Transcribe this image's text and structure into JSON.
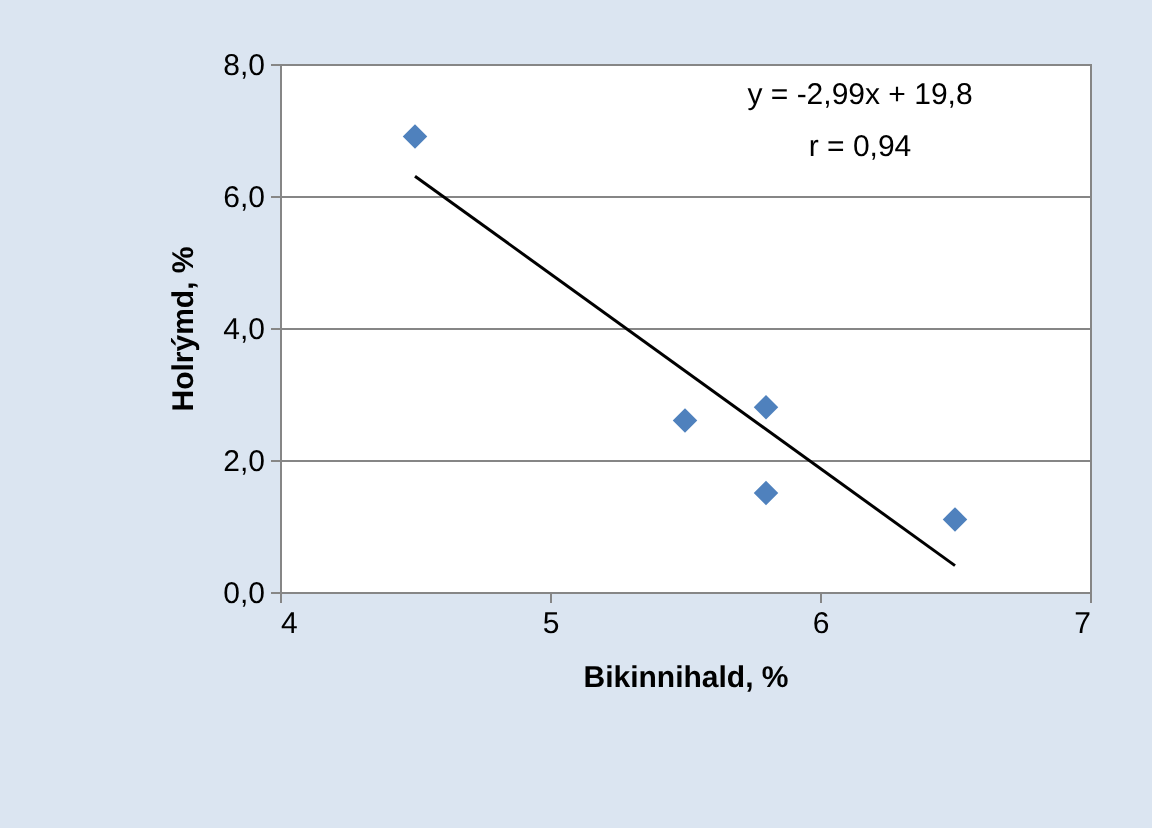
{
  "chart_data": {
    "type": "scatter",
    "xlabel": "Bikinnihald, %",
    "ylabel": "Holrýmd, %",
    "xlim": [
      4,
      7
    ],
    "xticks": [
      4,
      5,
      6,
      7
    ],
    "ylim": [
      0,
      8
    ],
    "yticks": [
      {
        "value": 0,
        "label": "0,0"
      },
      {
        "value": 2,
        "label": "2,0"
      },
      {
        "value": 4,
        "label": "4,0"
      },
      {
        "value": 6,
        "label": "6,0"
      },
      {
        "value": 8,
        "label": "8,0"
      }
    ],
    "grid": "y",
    "series": [
      {
        "marker": "diamond",
        "color": "#4f81bd",
        "x": [
          4.5,
          5.5,
          5.8,
          5.8,
          6.5
        ],
        "values": [
          6.9,
          2.6,
          2.8,
          1.5,
          1.1
        ]
      },
      {
        "type": "line",
        "marker": "none",
        "color": "#000000",
        "x": [
          4.5,
          6.5
        ],
        "values": [
          6.3,
          0.4
        ]
      }
    ],
    "annotations": [
      "y = -2,99x + 19,8",
      "r = 0,94"
    ]
  }
}
